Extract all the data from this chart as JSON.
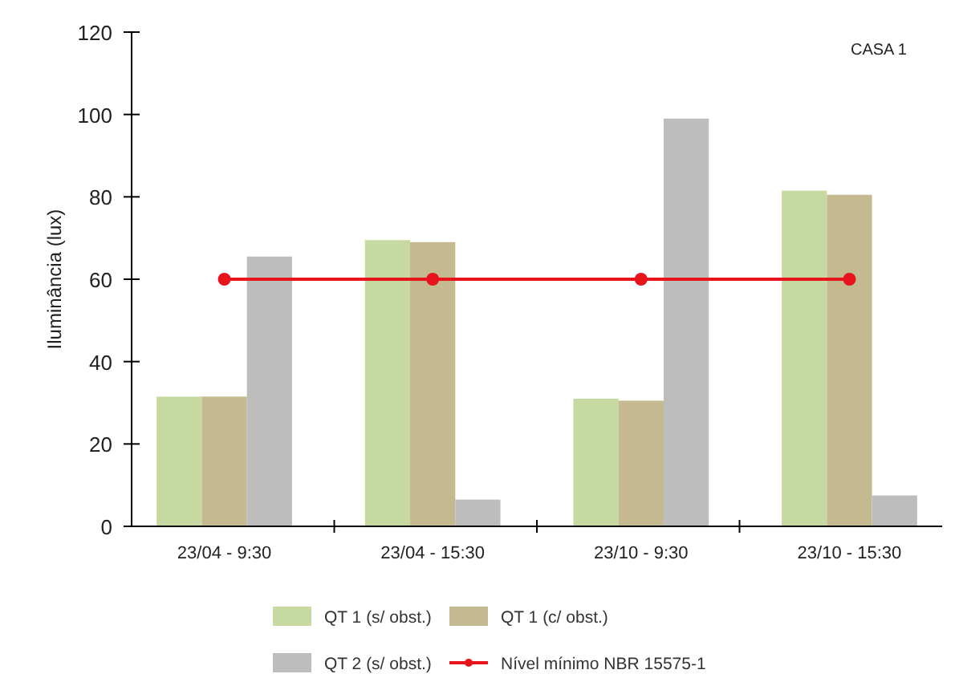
{
  "chart_data": {
    "type": "bar",
    "categories": [
      "23/04 - 9:30",
      "23/04 - 15:30",
      "23/10 - 9:30",
      "23/10 - 15:30"
    ],
    "series": [
      {
        "name": "QT 1 (s/ obst.)",
        "color": "#c5d9a0",
        "values": [
          31.5,
          69.5,
          31,
          81.5
        ]
      },
      {
        "name": "QT 1 (c/ obst.)",
        "color": "#c4b98f",
        "values": [
          31.5,
          69,
          30.5,
          80.5
        ]
      },
      {
        "name": "QT 2 (s/ obst.)",
        "color": "#bdbdbd",
        "values": [
          65.5,
          6.5,
          99,
          7.5
        ]
      },
      {
        "name": "Nível mínimo NBR 15575-1",
        "type": "line",
        "color": "#e8141c",
        "marker": "circle",
        "values": [
          60,
          60,
          60,
          60
        ]
      }
    ],
    "ylabel": "Iluminância (lux)",
    "ylim": [
      0,
      120
    ],
    "yticks": [
      0,
      20,
      40,
      60,
      80,
      100,
      120
    ],
    "annotations": [
      "CASA 1"
    ],
    "legend": "bottom",
    "grid": false
  }
}
